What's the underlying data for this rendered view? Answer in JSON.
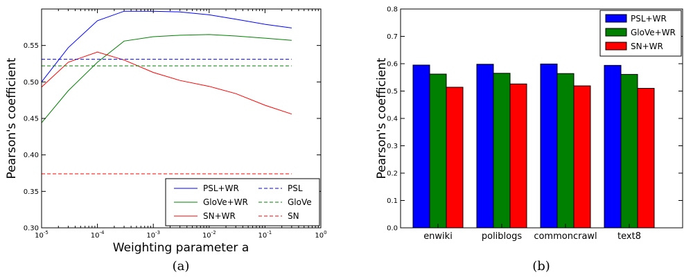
{
  "chart_data": [
    {
      "type": "line",
      "caption": "(a)",
      "xlabel": "Weighting parameter a",
      "ylabel": "Pearson's coefficient",
      "xscale": "log",
      "xlim": [
        1e-05,
        1
      ],
      "ylim": [
        0.3,
        0.6
      ],
      "xticks": [
        "10^-5",
        "10^-4",
        "10^-3",
        "10^-2",
        "10^-1",
        "10^0"
      ],
      "yticks": [
        "0.30",
        "0.35",
        "0.40",
        "0.45",
        "0.50",
        "0.55"
      ],
      "x": [
        1e-05,
        3e-05,
        0.0001,
        0.0003,
        0.001,
        0.003,
        0.01,
        0.03,
        0.1,
        0.3
      ],
      "series": [
        {
          "name": "PSL+WR",
          "color": "#0000ff",
          "style": "solid",
          "values": [
            0.5,
            0.547,
            0.584,
            0.597,
            0.597,
            0.596,
            0.592,
            0.586,
            0.579,
            0.574
          ]
        },
        {
          "name": "GloVe+WR",
          "color": "#008000",
          "style": "solid",
          "values": [
            0.444,
            0.488,
            0.527,
            0.556,
            0.562,
            0.564,
            0.565,
            0.563,
            0.56,
            0.557
          ]
        },
        {
          "name": "SN+WR",
          "color": "#ff0000",
          "style": "solid",
          "values": [
            0.493,
            0.527,
            0.541,
            0.53,
            0.513,
            0.502,
            0.494,
            0.484,
            0.468,
            0.456
          ]
        },
        {
          "name": "PSL",
          "color": "#0000ff",
          "style": "dashed",
          "values": [
            0.531,
            0.531,
            0.531,
            0.531,
            0.531,
            0.531,
            0.531,
            0.531,
            0.531,
            0.531
          ]
        },
        {
          "name": "GloVe",
          "color": "#008000",
          "style": "dashed",
          "values": [
            0.522,
            0.522,
            0.522,
            0.522,
            0.522,
            0.522,
            0.522,
            0.522,
            0.522,
            0.522
          ]
        },
        {
          "name": "SN",
          "color": "#ff0000",
          "style": "dashed",
          "values": [
            0.374,
            0.374,
            0.374,
            0.374,
            0.374,
            0.374,
            0.374,
            0.374,
            0.374,
            0.374
          ]
        }
      ],
      "legend": "lower-right"
    },
    {
      "type": "bar",
      "caption": "(b)",
      "xlabel": "",
      "ylabel": "Pearson's coefficient",
      "ylim": [
        0.0,
        0.8
      ],
      "yticks": [
        "0.0",
        "0.1",
        "0.2",
        "0.3",
        "0.4",
        "0.5",
        "0.6",
        "0.7",
        "0.8"
      ],
      "categories": [
        "enwiki",
        "poliblogs",
        "commoncrawl",
        "text8"
      ],
      "series": [
        {
          "name": "PSL+WR",
          "color": "#0000ff",
          "values": [
            0.595,
            0.598,
            0.599,
            0.594
          ]
        },
        {
          "name": "GloVe+WR",
          "color": "#008000",
          "values": [
            0.562,
            0.565,
            0.564,
            0.561
          ]
        },
        {
          "name": "SN+WR",
          "color": "#ff0000",
          "values": [
            0.514,
            0.526,
            0.519,
            0.51
          ]
        }
      ],
      "legend": "top-right"
    }
  ]
}
